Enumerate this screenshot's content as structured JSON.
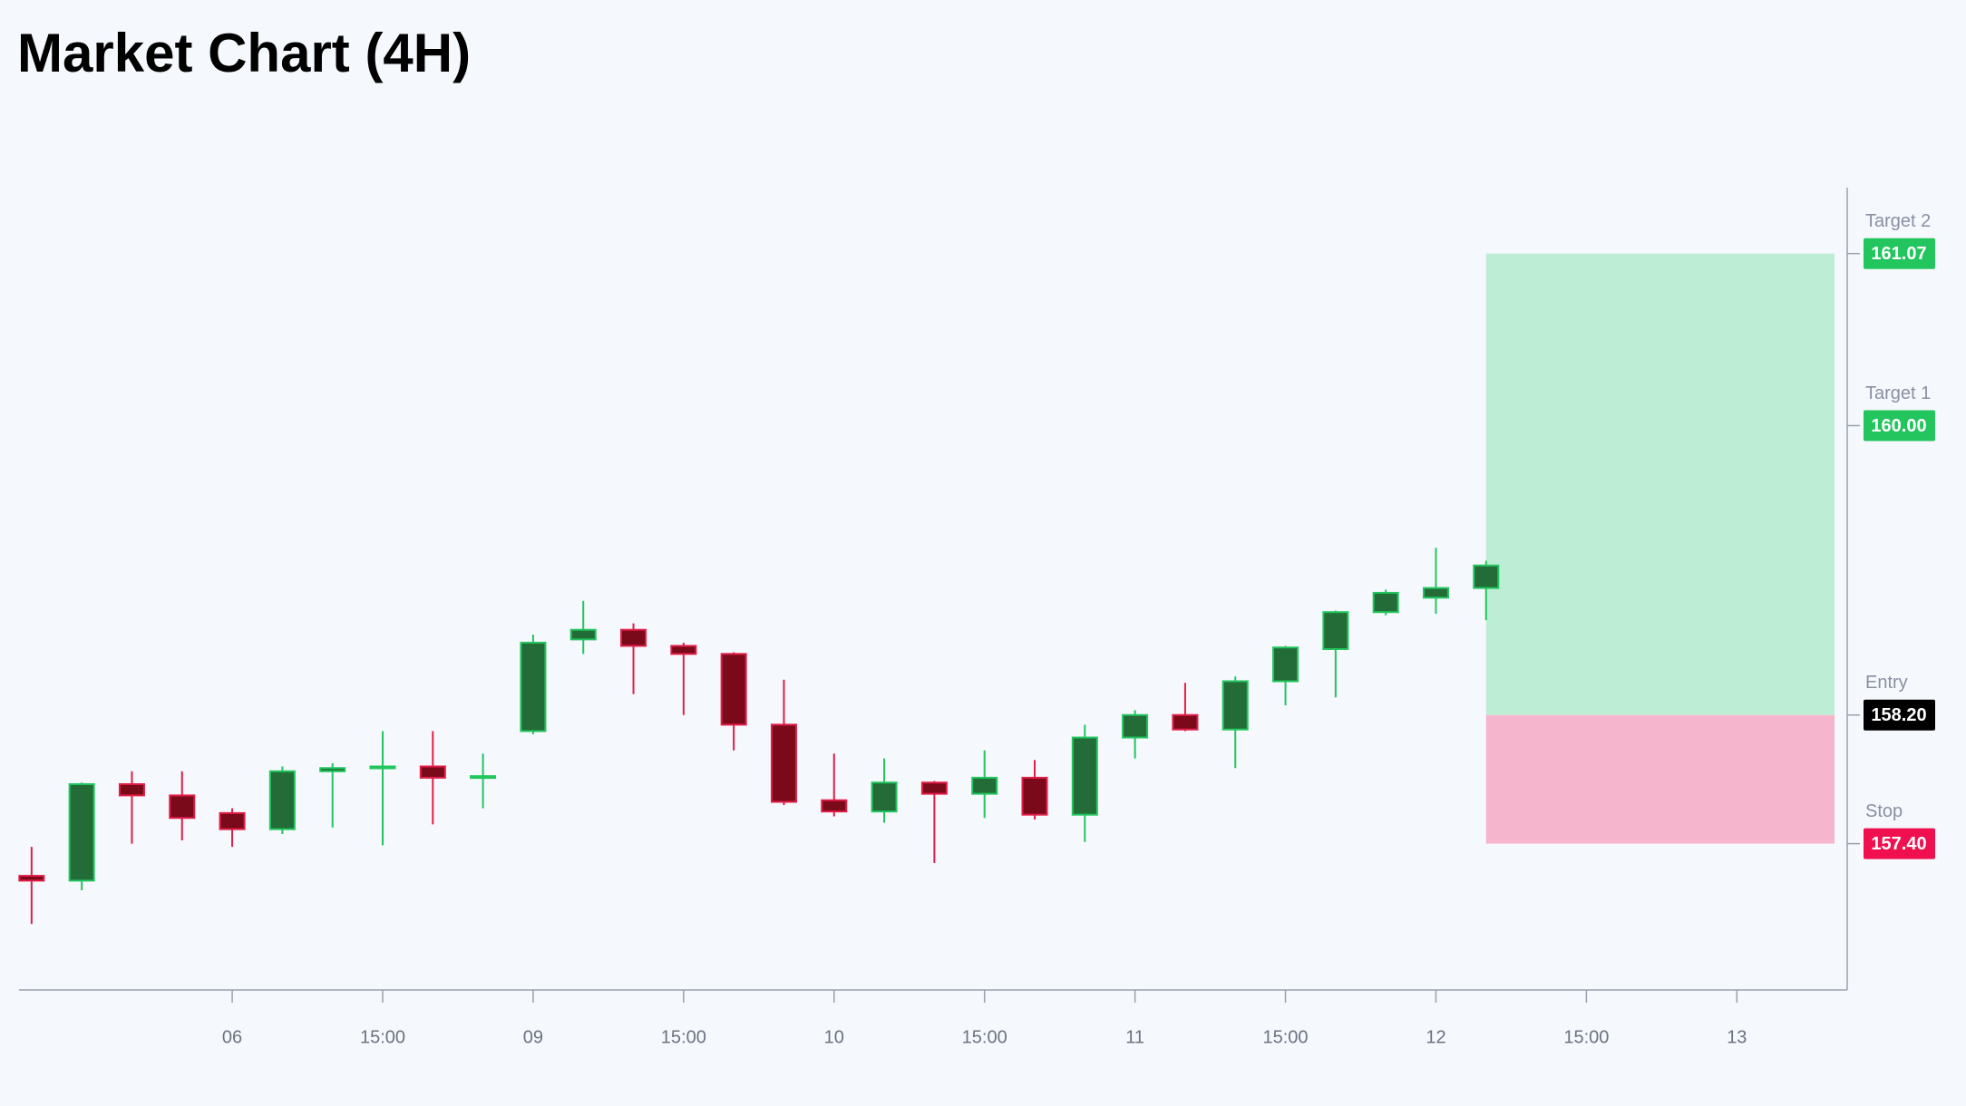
{
  "chart_data": {
    "type": "candlestick",
    "title": "Market Chart (4H)",
    "x": [
      0,
      1,
      2,
      3,
      4,
      5,
      6,
      7,
      8,
      9,
      10,
      11,
      12,
      13,
      14,
      15,
      16,
      17,
      18,
      19,
      20,
      21,
      22,
      23,
      24,
      25,
      26,
      27,
      28,
      29
    ],
    "open": [
      157.2,
      157.17,
      157.77,
      157.7,
      157.59,
      157.49,
      157.85,
      157.87,
      157.88,
      157.81,
      158.1,
      158.67,
      158.73,
      158.63,
      158.58,
      158.14,
      157.67,
      157.6,
      157.78,
      157.71,
      157.81,
      157.58,
      158.06,
      158.2,
      158.11,
      158.41,
      158.61,
      158.84,
      158.93,
      158.99
    ],
    "high": [
      157.38,
      157.78,
      157.85,
      157.85,
      157.62,
      157.88,
      157.9,
      158.1,
      158.1,
      157.96,
      158.7,
      158.91,
      158.77,
      158.65,
      158.59,
      158.42,
      157.96,
      157.93,
      157.79,
      157.98,
      157.92,
      158.14,
      158.23,
      158.4,
      158.44,
      158.63,
      158.85,
      158.98,
      159.24,
      159.16
    ],
    "low": [
      156.9,
      157.11,
      157.4,
      157.42,
      157.38,
      157.46,
      157.5,
      157.39,
      157.52,
      157.62,
      158.08,
      158.58,
      158.33,
      158.2,
      157.98,
      157.64,
      157.57,
      157.53,
      157.28,
      157.56,
      157.55,
      157.41,
      157.93,
      158.1,
      157.87,
      158.26,
      158.31,
      158.82,
      158.83,
      158.79
    ],
    "close": [
      157.17,
      157.77,
      157.7,
      157.56,
      157.49,
      157.85,
      157.87,
      157.88,
      157.81,
      157.82,
      158.65,
      158.73,
      158.63,
      158.58,
      158.14,
      157.66,
      157.6,
      157.78,
      157.71,
      157.81,
      157.58,
      158.06,
      158.2,
      158.11,
      158.41,
      158.62,
      158.84,
      158.96,
      158.99,
      159.13
    ],
    "up_color": "#236b37",
    "up_border": "#22c55e",
    "down_color": "#7a0a1a",
    "down_border": "#e11d48",
    "xlim": [
      -0.25,
      36.2
    ],
    "xticks": [
      {
        "value": 4,
        "label": "06"
      },
      {
        "value": 7,
        "label": "15:00"
      },
      {
        "value": 10,
        "label": "09"
      },
      {
        "value": 13,
        "label": "15:00"
      },
      {
        "value": 16,
        "label": "10"
      },
      {
        "value": 19,
        "label": "15:00"
      },
      {
        "value": 22,
        "label": "11"
      },
      {
        "value": 25,
        "label": "15:00"
      },
      {
        "value": 28,
        "label": "12"
      },
      {
        "value": 31,
        "label": "15:00"
      },
      {
        "value": 34,
        "label": "13"
      }
    ],
    "ylim": [
      156.49,
      161.48
    ],
    "levels": [
      {
        "name": "Target 2",
        "value": 161.07,
        "value_label": "161.07",
        "color": "#22c55e"
      },
      {
        "name": "Target 1",
        "value": 160,
        "value_label": "160.00",
        "color": "#22c55e"
      },
      {
        "name": "Entry",
        "value": 158.2,
        "value_label": "158.20",
        "color": "#000000"
      },
      {
        "name": "Stop",
        "value": 157.4,
        "value_label": "157.40",
        "color": "#f0104f"
      }
    ],
    "profit_zone_color": "#bdeed5",
    "loss_zone_color": "#f5b5cd"
  }
}
